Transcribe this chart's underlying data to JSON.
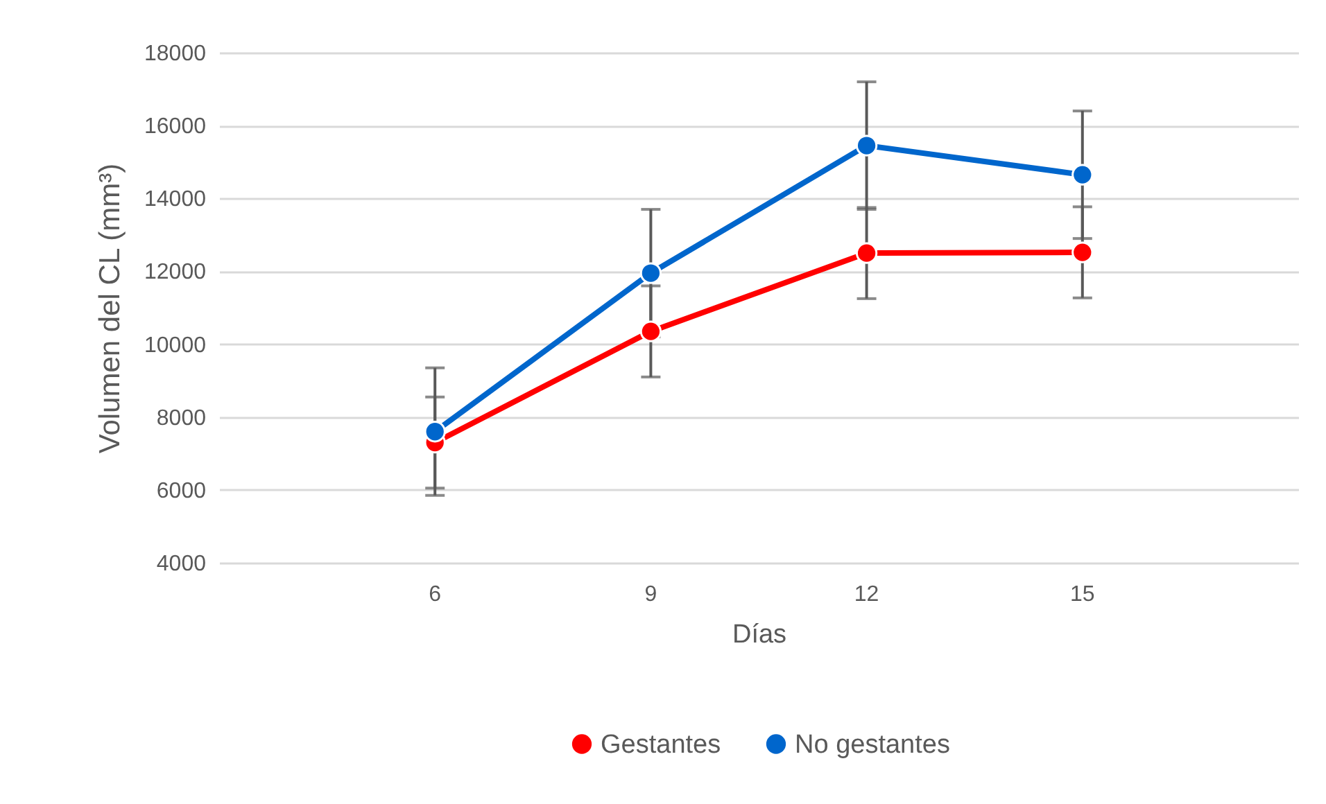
{
  "chart_data": {
    "type": "line",
    "xlabel": "Días",
    "ylabel": "Volumen del CL (mm³)",
    "categories": [
      "6",
      "9",
      "12",
      "15"
    ],
    "ylim": [
      4000,
      18000
    ],
    "yticks": [
      4000,
      6000,
      8000,
      10000,
      12000,
      14000,
      16000,
      18000
    ],
    "grid": "y",
    "legend": "bottom",
    "marker": "circle",
    "line_style": "solid",
    "series": [
      {
        "name": "Gestantes",
        "color": "#ff0000",
        "values": [
          7300,
          10350,
          12500,
          12520
        ],
        "errors": [
          1250,
          1250,
          1250,
          1250
        ]
      },
      {
        "name": "No gestantes",
        "color": "#0066cc",
        "values": [
          7600,
          11950,
          15450,
          14650
        ],
        "errors": [
          1750,
          1750,
          1750,
          1750
        ]
      }
    ]
  }
}
